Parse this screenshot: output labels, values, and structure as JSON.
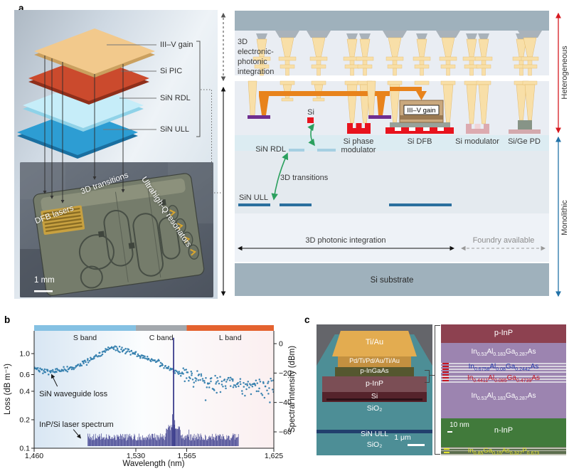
{
  "panels": {
    "a": {
      "label": "a",
      "stack": {
        "layers": [
          {
            "name": "III–V gain",
            "color": "#f2c98c"
          },
          {
            "name": "Si PIC",
            "color": "#cb4a2d"
          },
          {
            "name": "SiN RDL",
            "color": "#c6edf9"
          },
          {
            "name": "SiN ULL",
            "color": "#2d9dd3"
          }
        ]
      },
      "chip": {
        "dfb_label": "DFB lasers",
        "transitions_label": "3D transitions",
        "resonators_label": "Ultrahigh-Q resonators",
        "scale_label": "1 mm"
      },
      "cross_section": {
        "left_region_lines": [
          "3D",
          "electronic-",
          "photonic",
          "integration"
        ],
        "si_label": "Si",
        "sin_rdl_label": "SiN RDL",
        "phase_mod_lines": [
          "Si phase",
          "modulator"
        ],
        "si_dfb_label": "Si DFB",
        "gain_label": "III–V gain",
        "si_modulator_label": "Si modulator",
        "si_ge_pd_label": "Si/Ge PD",
        "transitions_label": "3D transitions",
        "sin_ull_label": "SiN ULL",
        "photonic_label": "3D photonic integration",
        "foundry_label": "Foundry available",
        "substrate_label": "Si substrate",
        "right_top_label": "Heterogeneous",
        "right_bottom_label": "Monolithic",
        "colors": {
          "heterogeneous_arrow": "#d61920",
          "monolithic_arrow": "#2272a8",
          "transitions_arrow": "#2ba05e",
          "si_red": "#e8131d",
          "sin_rdl_bar": "#a5cfe2",
          "sin_ull_bar": "#2a6f9e",
          "interconnect_orange": "#e8831c",
          "pad_purple": "#6f2e8f"
        }
      }
    },
    "b": {
      "label": "b"
    },
    "c": {
      "label": "c",
      "sem": {
        "layers": [
          "Ti/Au",
          "Pd/Ti/Pd/Au/Ti/Au",
          "p-InGaAs",
          "p-InP",
          "Si",
          "SiO₂",
          "SiN ULL",
          "SiO₂"
        ],
        "scale_label": "1 μm"
      },
      "tem": {
        "top": "p-InP",
        "comp_outer_top": "In_{0.53}Al_{0.183}Ga_{0.287}As",
        "comp_barrier": "In_{0.6758}Al_{0.08}Ga_{0.2442}As",
        "comp_well": "In_{0.4411}Al_{0.085}Ga_{0.4739}As",
        "comp_outer_bottom": "In_{0.53}Al_{0.183}Ga_{0.287}As",
        "bottom": "n-InP",
        "scale_label": "10 nm",
        "comp_contact": "In_{0.85}Ga_{0.15}As_{0.327}P_{0.673}"
      }
    }
  },
  "chart_data": {
    "type": "composite",
    "panel": "b",
    "xlabel": "Wavelength (nm)",
    "ylabel_left": "Loss (dB m⁻¹)",
    "ylabel_right": "Spectral intensity (dBm)",
    "x_range": [
      1460,
      1625
    ],
    "x_ticks": [
      {
        "value": 1460,
        "label": "1,460"
      },
      {
        "value": 1530,
        "label": "1,530"
      },
      {
        "value": 1565,
        "label": "1,565"
      },
      {
        "value": 1625,
        "label": "1,625"
      }
    ],
    "y_left": {
      "scale": "log",
      "range": [
        0.1,
        1.8
      ],
      "ticks": [
        {
          "value": 1.0,
          "label": "1.0"
        },
        {
          "value": 0.6,
          "label": "0.6"
        },
        {
          "value": 0.4,
          "label": "0.4"
        },
        {
          "value": 0.2,
          "label": "0.2"
        },
        {
          "value": 0.1,
          "label": "0.1"
        }
      ]
    },
    "y_right": {
      "range": [
        5,
        -70
      ],
      "ticks": [
        {
          "value": 0,
          "label": "0"
        },
        {
          "value": -20,
          "label": "−20"
        },
        {
          "value": -40,
          "label": "−40"
        },
        {
          "value": -60,
          "label": "−60"
        }
      ]
    },
    "bands": [
      {
        "label": "S band",
        "range": [
          1460,
          1530
        ],
        "color": "#85c1e3"
      },
      {
        "label": "C band",
        "range": [
          1530,
          1565
        ],
        "color": "#a3a8ad"
      },
      {
        "label": "L band",
        "range": [
          1565,
          1625
        ],
        "color": "#e4622f"
      }
    ],
    "series": [
      {
        "name": "SiN waveguide loss",
        "type": "scatter",
        "axis": "left",
        "color": "#2f7cab",
        "n_points": 330,
        "spread_s_c": 0.05,
        "spread_l": 0.15,
        "trend_points": [
          [
            1460,
            0.71
          ],
          [
            1466,
            0.67
          ],
          [
            1472,
            0.64
          ],
          [
            1478,
            0.66
          ],
          [
            1484,
            0.7
          ],
          [
            1490,
            0.73
          ],
          [
            1496,
            0.82
          ],
          [
            1502,
            0.93
          ],
          [
            1508,
            1.05
          ],
          [
            1513,
            1.12
          ],
          [
            1518,
            1.13
          ],
          [
            1524,
            1.07
          ],
          [
            1530,
            1.0
          ],
          [
            1536,
            0.92
          ],
          [
            1542,
            0.84
          ],
          [
            1548,
            0.76
          ],
          [
            1554,
            0.68
          ],
          [
            1560,
            0.62
          ],
          [
            1565,
            0.6
          ],
          [
            1570,
            0.57
          ],
          [
            1576,
            0.52
          ],
          [
            1582,
            0.5
          ],
          [
            1588,
            0.47
          ],
          [
            1594,
            0.52
          ],
          [
            1600,
            0.46
          ],
          [
            1606,
            0.43
          ],
          [
            1612,
            0.47
          ],
          [
            1618,
            0.42
          ],
          [
            1625,
            0.45
          ]
        ]
      },
      {
        "name": "InP/Si laser spectrum",
        "type": "spectrum",
        "axis": "right",
        "color": "#3c3d8d",
        "floor_range_nm": [
          1497,
          1601
        ],
        "floor_dbm": -63,
        "peak_nm": 1556,
        "peak_dbm": 4
      }
    ],
    "annotations": [
      {
        "text": "SiN waveguide loss",
        "text_at": [
          1463.5,
          0.355
        ],
        "arrow_from": [
          1476,
          0.45
        ],
        "arrow_to": [
          1472,
          0.6
        ]
      },
      {
        "text": "InP/Si laser spectrum",
        "text_at": [
          1463.5,
          0.168
        ],
        "arrow_from": [
          1487,
          0.158
        ],
        "arrow_to": [
          1492,
          0.128
        ]
      }
    ]
  }
}
